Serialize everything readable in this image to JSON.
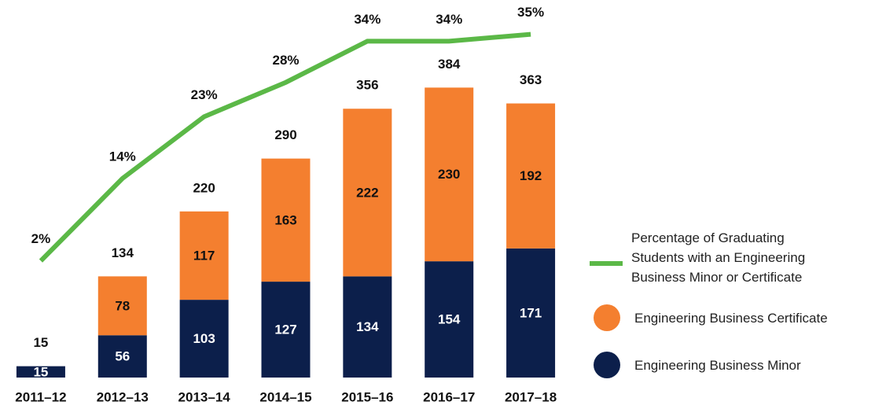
{
  "chart_data": {
    "type": "bar",
    "categories": [
      "2011–12",
      "2012–13",
      "2013–14",
      "2014–15",
      "2015–16",
      "2016–17",
      "2017–18"
    ],
    "series": [
      {
        "name": "Engineering Business Minor",
        "color": "#0c1f4b",
        "values": [
          15,
          56,
          103,
          127,
          134,
          154,
          171
        ]
      },
      {
        "name": "Engineering Business Certificate",
        "color": "#f47f2f",
        "values": [
          null,
          78,
          117,
          163,
          222,
          230,
          192
        ]
      },
      {
        "name": "Percentage of Graduating Students with an Engineering Business Minor or Certificate",
        "color": "#5bb847",
        "type": "line",
        "axis": "y2",
        "values": [
          2,
          14,
          23,
          28,
          34,
          34,
          35
        ],
        "value_labels": [
          "2%",
          "14%",
          "23%",
          "28%",
          "34%",
          "34%",
          "35%"
        ]
      }
    ],
    "totals": [
      15,
      134,
      220,
      290,
      356,
      384,
      363
    ],
    "ylim": [
      0,
      500
    ],
    "y2lim": [
      -15,
      40
    ],
    "stacked": true
  }
}
